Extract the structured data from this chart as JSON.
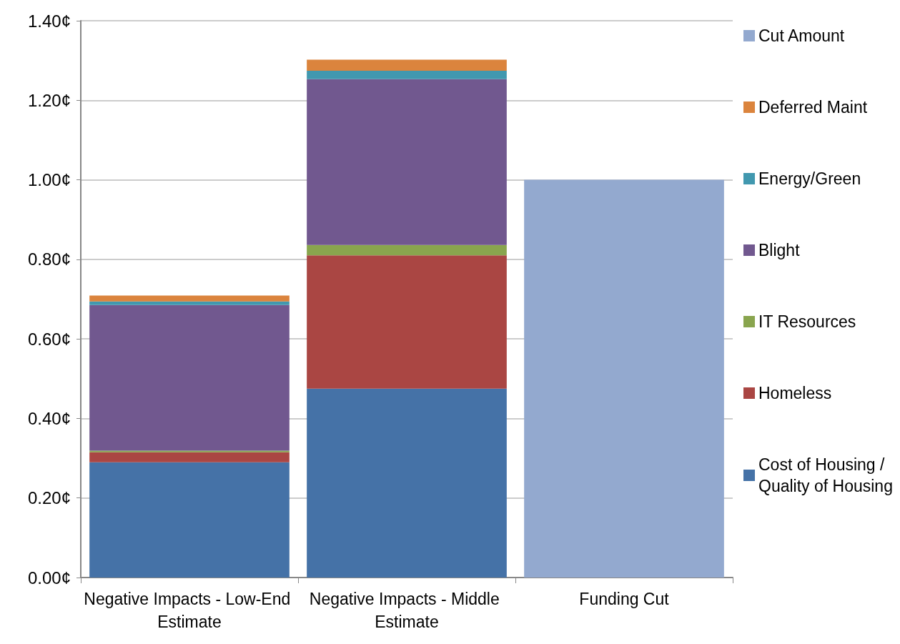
{
  "chart_data": {
    "type": "bar",
    "stacked": true,
    "categories": [
      "Negative Impacts - Low-End Estimate",
      "Negative Impacts - Middle Estimate",
      "Funding Cut"
    ],
    "series": [
      {
        "name": "Cost of Housing / Quality of Housing",
        "color": "#4572a7",
        "values": [
          0.29,
          0.475,
          null
        ]
      },
      {
        "name": "Homeless",
        "color": "#aa4643",
        "values": [
          0.025,
          0.335,
          null
        ]
      },
      {
        "name": "IT Resources",
        "color": "#89a54e",
        "values": [
          0.004,
          0.026,
          null
        ]
      },
      {
        "name": "Blight",
        "color": "#71588f",
        "values": [
          0.366,
          0.417,
          null
        ]
      },
      {
        "name": "Energy/Green",
        "color": "#4198af",
        "values": [
          0.009,
          0.021,
          null
        ]
      },
      {
        "name": "Deferred Maint",
        "color": "#db843d",
        "values": [
          0.015,
          0.028,
          null
        ]
      },
      {
        "name": "Cut Amount",
        "color": "#93a9cf",
        "values": [
          null,
          null,
          1.0
        ]
      }
    ],
    "ylim": [
      0,
      1.4
    ],
    "yticks": [
      {
        "value": 0,
        "label": "0.00¢"
      },
      {
        "value": 0.2,
        "label": "0.20¢"
      },
      {
        "value": 0.4,
        "label": "0.40¢"
      },
      {
        "value": 0.6,
        "label": "0.60¢"
      },
      {
        "value": 0.8,
        "label": "0.80¢"
      },
      {
        "value": 1.0,
        "label": "1.00¢"
      },
      {
        "value": 1.2,
        "label": "1.20¢"
      },
      {
        "value": 1.4,
        "label": "1.40¢"
      }
    ],
    "grid": "y",
    "legend": "right"
  }
}
